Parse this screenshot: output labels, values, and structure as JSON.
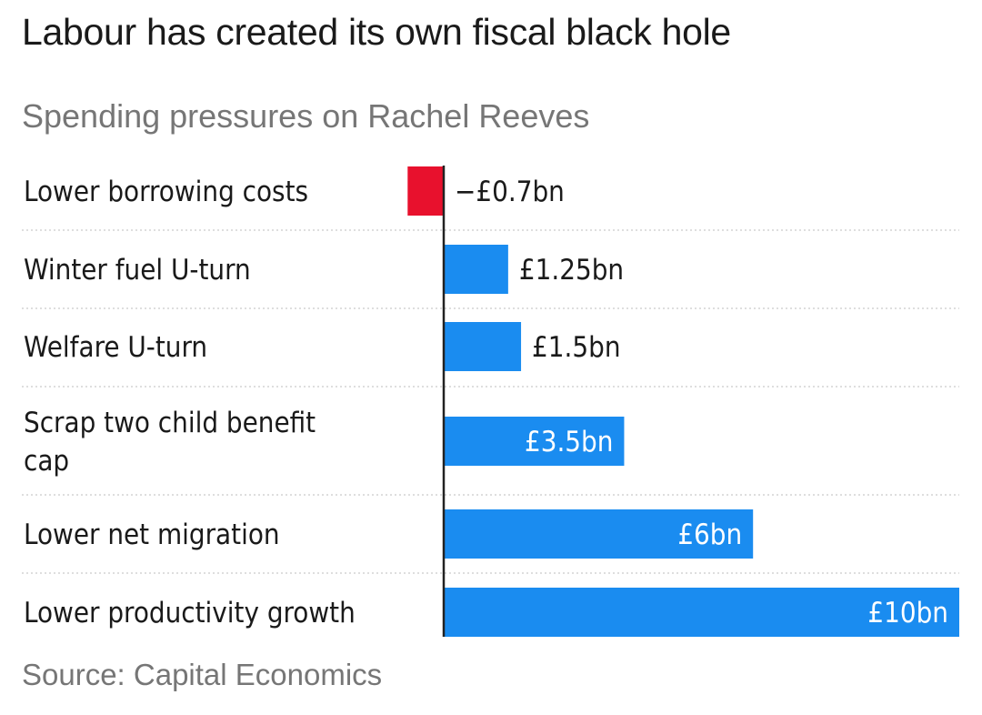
{
  "header": {
    "title": "Labour has created its own fiscal black hole",
    "subtitle": "Spending pressures on Rachel Reeves"
  },
  "footer": {
    "source": "Source: Capital Economics"
  },
  "colors": {
    "positive": "#1a8cf0",
    "negative": "#e8112d",
    "axis": "#222222",
    "grid": "#d4d4d4",
    "label_outside": "#1a1a1a",
    "label_inside": "#ffffff"
  },
  "chart_data": {
    "type": "bar",
    "orientation": "horizontal",
    "title": "Labour has created its own fiscal black hole",
    "subtitle": "Spending pressures on Rachel Reeves",
    "unit": "£bn",
    "xlim": [
      -0.7,
      10
    ],
    "grid": "horizontal dotted separators",
    "categories": [
      "Lower borrowing costs",
      "Winter fuel U-turn",
      "Welfare U-turn",
      "Scrap two child benefit cap",
      "Lower net migration",
      "Lower productivity growth"
    ],
    "category_lines": [
      [
        "Lower borrowing costs"
      ],
      [
        "Winter fuel U-turn"
      ],
      [
        "Welfare U-turn"
      ],
      [
        "Scrap two child benefit",
        "cap"
      ],
      [
        "Lower net migration"
      ],
      [
        "Lower productivity growth"
      ]
    ],
    "values": [
      -0.7,
      1.25,
      1.5,
      3.5,
      6,
      10
    ],
    "data_labels": [
      "−£0.7bn",
      "£1.25bn",
      "£1.5bn",
      "£3.5bn",
      "£6bn",
      "£10bn"
    ],
    "label_inside": [
      false,
      false,
      false,
      true,
      true,
      true
    ]
  }
}
